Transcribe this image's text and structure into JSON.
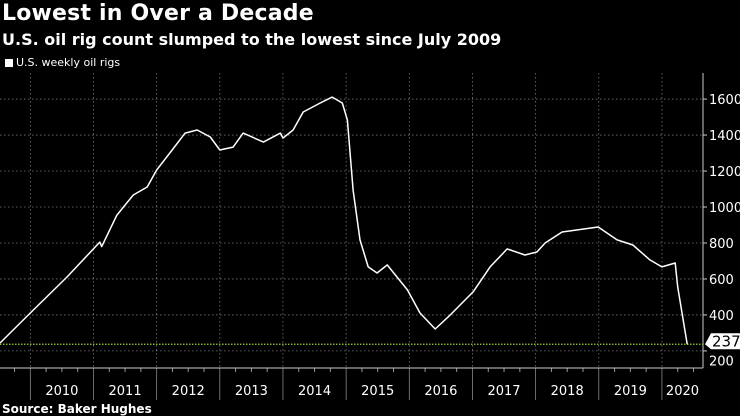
{
  "chart_data": {
    "type": "line",
    "title": "Lowest in Over a Decade",
    "subtitle": "U.S. oil rig count slumped to the lowest since July 2009",
    "source": "Source: Baker Hughes",
    "series": [
      {
        "name": "U.S. weekly oil rigs",
        "color": "#ffffff",
        "x": [
          2009.52,
          2010.0,
          2010.58,
          2011.1,
          2011.13,
          2011.37,
          2011.63,
          2011.85,
          2012.0,
          2012.27,
          2012.45,
          2012.64,
          2012.85,
          2013.0,
          2013.21,
          2013.37,
          2013.69,
          2013.96,
          2014.0,
          2014.16,
          2014.32,
          2014.59,
          2014.78,
          2014.94,
          2015.02,
          2015.11,
          2015.22,
          2015.35,
          2015.49,
          2015.65,
          2015.97,
          2016.17,
          2016.41,
          2016.65,
          2017.01,
          2017.28,
          2017.55,
          2017.83,
          2018.02,
          2018.15,
          2018.42,
          2018.99,
          2019.29,
          2019.54,
          2019.81,
          2020.0,
          2020.21,
          2020.25,
          2020.4
        ],
        "values": [
          244,
          411,
          611,
          805,
          780,
          955,
          1067,
          1111,
          1205,
          1328,
          1411,
          1428,
          1389,
          1317,
          1333,
          1411,
          1361,
          1411,
          1383,
          1428,
          1528,
          1578,
          1611,
          1578,
          1483,
          1094,
          817,
          667,
          633,
          678,
          539,
          411,
          322,
          400,
          528,
          667,
          767,
          733,
          750,
          800,
          861,
          889,
          817,
          789,
          706,
          667,
          689,
          556,
          237
        ]
      }
    ],
    "reference_line": {
      "value": 237,
      "label": "237",
      "color": "#9acd32"
    },
    "x_ticks": [
      "2010",
      "2011",
      "2012",
      "2013",
      "2014",
      "2015",
      "2016",
      "2017",
      "2018",
      "2019",
      "2020"
    ],
    "y_ticks": [
      "200",
      "400",
      "600",
      "800",
      "1000",
      "1200",
      "1400",
      "1600"
    ],
    "xlim": [
      2009.52,
      2020.65
    ],
    "ylim": [
      105,
      1745
    ],
    "grid": true,
    "y_axis_side": "right",
    "legend_position": "top-left"
  }
}
